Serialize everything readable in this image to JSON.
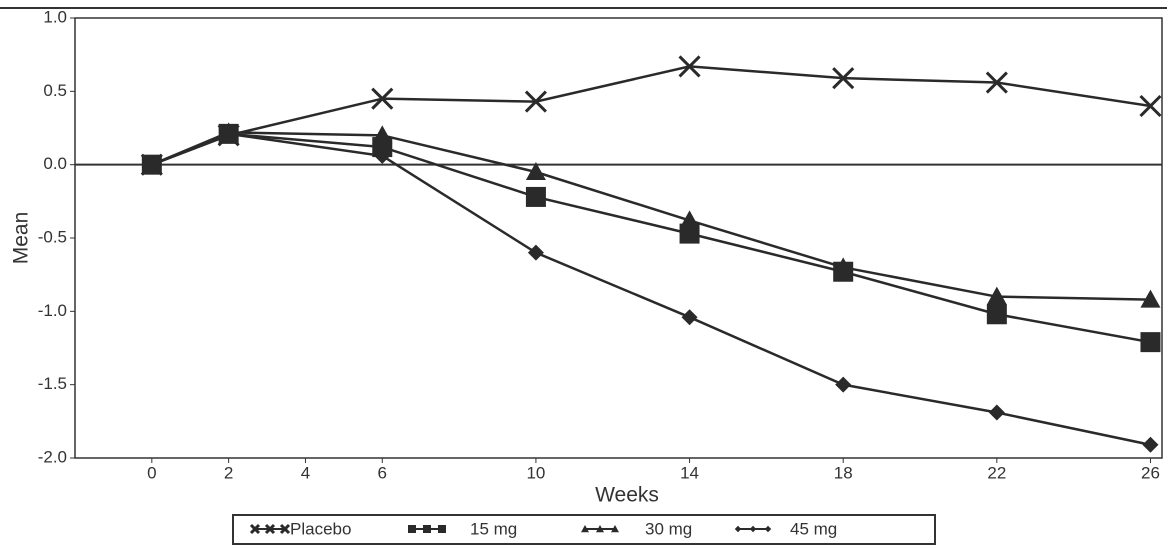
{
  "chart_data": {
    "type": "line",
    "x_label": "Weeks",
    "y_label": "Mean",
    "xlim": [
      -2,
      26.3
    ],
    "ylim": [
      -2.0,
      1.0
    ],
    "xticks": [
      0,
      2,
      4,
      6,
      10,
      14,
      18,
      22,
      26
    ],
    "yticks": [
      {
        "value": 1.0,
        "label": "1.0"
      },
      0.5,
      {
        "value": 0.0,
        "label": "0.0"
      },
      -0.5,
      {
        "value": -1.0,
        "label": "-1.0"
      },
      -1.5,
      {
        "value": -2.0,
        "label": "-2.0"
      }
    ],
    "zero_line": true,
    "legend": "bottom",
    "series": [
      {
        "name": "Placebo",
        "color": "#2a2a2a",
        "marker": "x",
        "x": [
          0,
          2,
          6,
          10,
          14,
          18,
          22,
          26
        ],
        "values": [
          0,
          0.2,
          0.45,
          0.43,
          0.67,
          0.59,
          0.56,
          0.4
        ]
      },
      {
        "name": "15 mg",
        "color": "#2a2a2a",
        "marker": "square",
        "x": [
          0,
          2,
          6,
          10,
          14,
          18,
          22,
          26
        ],
        "values": [
          0,
          0.21,
          0.12,
          -0.22,
          -0.47,
          -0.73,
          -1.02,
          -1.21
        ]
      },
      {
        "name": "30 mg",
        "color": "#2a2a2a",
        "marker": "triangle",
        "x": [
          0,
          2,
          6,
          10,
          14,
          18,
          22,
          26
        ],
        "values": [
          0,
          0.22,
          0.2,
          -0.05,
          -0.38,
          -0.7,
          -0.9,
          -0.92
        ]
      },
      {
        "name": "45 mg",
        "color": "#2a2a2a",
        "marker": "diamond",
        "x": [
          0,
          2,
          6,
          10,
          14,
          18,
          22,
          26
        ],
        "values": [
          0,
          0.21,
          0.06,
          -0.6,
          -1.04,
          -1.5,
          -1.69,
          -1.91
        ]
      }
    ]
  }
}
